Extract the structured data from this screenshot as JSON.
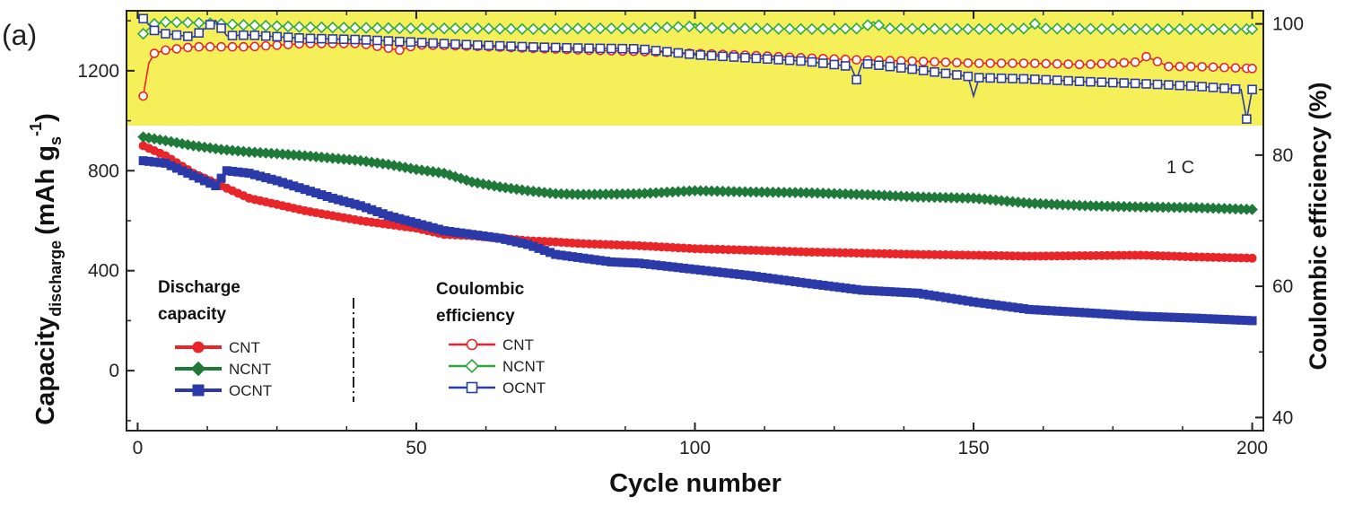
{
  "panel_label": "(a)",
  "rate_label": "1 C",
  "chart_data": {
    "type": "line",
    "x": {
      "label": "Cycle number",
      "range": [
        -2,
        202
      ],
      "ticks": [
        0,
        50,
        100,
        150,
        200
      ]
    },
    "y_left": {
      "label_main": "Capacity",
      "label_sub": "discharge",
      "label_unit_open": "(mAh g",
      "label_unit_sub": "s",
      "label_unit_sup": "-1",
      "label_unit_close": ")",
      "range": [
        -240,
        1440
      ],
      "ticks": [
        0,
        400,
        800,
        1200
      ]
    },
    "y_right": {
      "label": "Coulombic efficiency (%)",
      "range": [
        38,
        102
      ],
      "ticks": [
        40,
        60,
        80,
        100
      ]
    },
    "highlight_band": {
      "axis": "right",
      "from": 84.5,
      "to": 102,
      "color": "#f5ef5a"
    },
    "legend_discharge": {
      "title_line1": "Discharge",
      "title_line2": "capacity",
      "entries": [
        {
          "name": "CNT",
          "color": "#e8262a",
          "marker": "circle-filled"
        },
        {
          "name": "NCNT",
          "color": "#1f7a3a",
          "marker": "diamond-filled"
        },
        {
          "name": "OCNT",
          "color": "#2b3aa8",
          "marker": "square-filled"
        }
      ]
    },
    "legend_ce": {
      "title_line1": "Coulombic",
      "title_line2": "efficiency",
      "entries": [
        {
          "name": "CNT",
          "color": "#e8262a",
          "marker": "circle-open"
        },
        {
          "name": "NCNT",
          "color": "#2fa844",
          "marker": "diamond-open"
        },
        {
          "name": "OCNT",
          "color": "#2b3aa8",
          "marker": "square-open"
        }
      ]
    },
    "discharge_series": [
      {
        "name": "CNT",
        "color": "#e8262a",
        "marker": "circle",
        "points": [
          [
            1,
            900
          ],
          [
            5,
            860
          ],
          [
            10,
            790
          ],
          [
            15,
            740
          ],
          [
            20,
            690
          ],
          [
            25,
            665
          ],
          [
            30,
            640
          ],
          [
            35,
            620
          ],
          [
            40,
            600
          ],
          [
            45,
            585
          ],
          [
            50,
            570
          ],
          [
            55,
            545
          ],
          [
            60,
            540
          ],
          [
            65,
            530
          ],
          [
            70,
            520
          ],
          [
            75,
            515
          ],
          [
            80,
            508
          ],
          [
            90,
            500
          ],
          [
            100,
            488
          ],
          [
            110,
            482
          ],
          [
            120,
            475
          ],
          [
            130,
            470
          ],
          [
            140,
            465
          ],
          [
            150,
            462
          ],
          [
            160,
            458
          ],
          [
            170,
            460
          ],
          [
            180,
            462
          ],
          [
            190,
            455
          ],
          [
            200,
            450
          ]
        ]
      },
      {
        "name": "NCNT",
        "color": "#1f7a3a",
        "marker": "diamond",
        "points": [
          [
            1,
            935
          ],
          [
            5,
            920
          ],
          [
            10,
            900
          ],
          [
            15,
            885
          ],
          [
            20,
            875
          ],
          [
            25,
            868
          ],
          [
            30,
            860
          ],
          [
            35,
            850
          ],
          [
            40,
            840
          ],
          [
            45,
            825
          ],
          [
            50,
            805
          ],
          [
            55,
            790
          ],
          [
            60,
            755
          ],
          [
            65,
            735
          ],
          [
            70,
            720
          ],
          [
            75,
            708
          ],
          [
            80,
            705
          ],
          [
            90,
            708
          ],
          [
            100,
            720
          ],
          [
            110,
            715
          ],
          [
            120,
            712
          ],
          [
            130,
            705
          ],
          [
            140,
            695
          ],
          [
            150,
            690
          ],
          [
            160,
            670
          ],
          [
            170,
            660
          ],
          [
            180,
            655
          ],
          [
            190,
            652
          ],
          [
            200,
            645
          ]
        ]
      },
      {
        "name": "OCNT",
        "color": "#2b3aa8",
        "marker": "square",
        "points": [
          [
            1,
            840
          ],
          [
            5,
            830
          ],
          [
            10,
            780
          ],
          [
            14,
            740
          ],
          [
            16,
            800
          ],
          [
            20,
            790
          ],
          [
            25,
            760
          ],
          [
            30,
            725
          ],
          [
            35,
            690
          ],
          [
            40,
            660
          ],
          [
            45,
            620
          ],
          [
            50,
            590
          ],
          [
            55,
            560
          ],
          [
            60,
            545
          ],
          [
            65,
            530
          ],
          [
            70,
            505
          ],
          [
            75,
            465
          ],
          [
            80,
            450
          ],
          [
            85,
            435
          ],
          [
            90,
            430
          ],
          [
            100,
            405
          ],
          [
            110,
            380
          ],
          [
            120,
            350
          ],
          [
            130,
            322
          ],
          [
            140,
            310
          ],
          [
            150,
            275
          ],
          [
            160,
            245
          ],
          [
            170,
            232
          ],
          [
            180,
            218
          ],
          [
            190,
            210
          ],
          [
            200,
            200
          ]
        ]
      }
    ],
    "ce_series": [
      {
        "name": "CNT",
        "color": "#e8262a",
        "marker": "circle",
        "points": [
          [
            1,
            89
          ],
          [
            2,
            94
          ],
          [
            3,
            95.5
          ],
          [
            5,
            96
          ],
          [
            10,
            96.5
          ],
          [
            20,
            96.5
          ],
          [
            30,
            97
          ],
          [
            40,
            97
          ],
          [
            47,
            96
          ],
          [
            50,
            96.8
          ],
          [
            60,
            96.6
          ],
          [
            70,
            96.3
          ],
          [
            80,
            96
          ],
          [
            90,
            95.8
          ],
          [
            100,
            95.5
          ],
          [
            110,
            95.2
          ],
          [
            120,
            94.8
          ],
          [
            130,
            94.5
          ],
          [
            140,
            94.3
          ],
          [
            150,
            94
          ],
          [
            160,
            94
          ],
          [
            170,
            93.8
          ],
          [
            180,
            94.2
          ],
          [
            181,
            95
          ],
          [
            185,
            93.5
          ],
          [
            190,
            93.5
          ],
          [
            200,
            93.2
          ]
        ]
      },
      {
        "name": "NCNT",
        "color": "#2fa844",
        "marker": "diamond",
        "points": [
          [
            1,
            98.5
          ],
          [
            3,
            100
          ],
          [
            5,
            100.3
          ],
          [
            10,
            100.2
          ],
          [
            20,
            99.8
          ],
          [
            30,
            99.5
          ],
          [
            40,
            99.4
          ],
          [
            50,
            99.3
          ],
          [
            60,
            99.3
          ],
          [
            70,
            99.2
          ],
          [
            80,
            99.3
          ],
          [
            90,
            99.3
          ],
          [
            99,
            99.6
          ],
          [
            100,
            100
          ],
          [
            101,
            99.4
          ],
          [
            110,
            99.3
          ],
          [
            120,
            99.2
          ],
          [
            130,
            99.3
          ],
          [
            132,
            100.3
          ],
          [
            134,
            99.3
          ],
          [
            150,
            99.2
          ],
          [
            160,
            99.3
          ],
          [
            161,
            100
          ],
          [
            162,
            99.3
          ],
          [
            180,
            99.2
          ],
          [
            190,
            99.2
          ],
          [
            200,
            99.2
          ]
        ]
      },
      {
        "name": "OCNT",
        "color": "#2b3aa8",
        "marker": "square",
        "points": [
          [
            1,
            100.8
          ],
          [
            3,
            99
          ],
          [
            5,
            98.5
          ],
          [
            10,
            98
          ],
          [
            14,
            100.5
          ],
          [
            16,
            98.2
          ],
          [
            20,
            98.3
          ],
          [
            30,
            97.8
          ],
          [
            40,
            97.6
          ],
          [
            50,
            97.2
          ],
          [
            60,
            96.8
          ],
          [
            70,
            96.5
          ],
          [
            80,
            96.3
          ],
          [
            90,
            96.2
          ],
          [
            100,
            95.3
          ],
          [
            110,
            94.8
          ],
          [
            120,
            94.3
          ],
          [
            128,
            93.5
          ],
          [
            129,
            91.5
          ],
          [
            130,
            94
          ],
          [
            140,
            93
          ],
          [
            149,
            92
          ],
          [
            150,
            89
          ],
          [
            151,
            91.8
          ],
          [
            160,
            91.6
          ],
          [
            170,
            91.2
          ],
          [
            180,
            90.9
          ],
          [
            190,
            90.5
          ],
          [
            198,
            90
          ],
          [
            199,
            85.5
          ],
          [
            200,
            90
          ]
        ]
      }
    ]
  }
}
